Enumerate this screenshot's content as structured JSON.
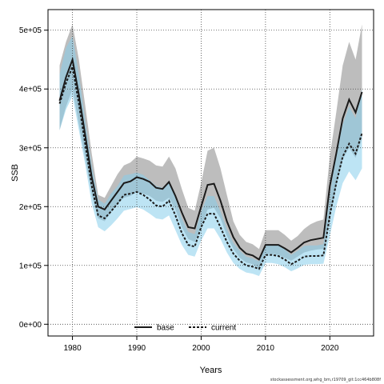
{
  "chart_data": {
    "type": "line",
    "title": "",
    "xlabel": "Years",
    "ylabel": "SSB",
    "xlim": [
      1976.2,
      2026.8
    ],
    "ylim": [
      -20000,
      535000
    ],
    "x_ticks": [
      1980,
      1990,
      2000,
      2010,
      2020
    ],
    "y_ticks": [
      0,
      100000,
      200000,
      300000,
      400000,
      500000
    ],
    "y_tick_labels": [
      "0e+00",
      "1e+05",
      "2e+05",
      "3e+05",
      "4e+05",
      "5e+05"
    ],
    "grid": true,
    "legend_position": "bottom-center",
    "x": [
      1978,
      1979,
      1980,
      1981,
      1982,
      1983,
      1984,
      1985,
      1986,
      1987,
      1988,
      1989,
      1990,
      1991,
      1992,
      1993,
      1994,
      1995,
      1996,
      1997,
      1998,
      1999,
      2000,
      2001,
      2002,
      2003,
      2004,
      2005,
      2006,
      2007,
      2008,
      2009,
      2010,
      2011,
      2012,
      2013,
      2014,
      2015,
      2016,
      2017,
      2018,
      2019,
      2020,
      2021,
      2022,
      2023,
      2024,
      2025
    ],
    "series": [
      {
        "name": "base",
        "line_style": "solid",
        "color": "#1a1a1a",
        "band_color": "#999999",
        "values": [
          380000,
          420000,
          450000,
          390000,
          320000,
          250000,
          200000,
          195000,
          210000,
          225000,
          240000,
          243000,
          250000,
          247000,
          242000,
          232000,
          230000,
          242000,
          218000,
          190000,
          165000,
          163000,
          200000,
          237000,
          239000,
          210000,
          175000,
          148000,
          130000,
          120000,
          117000,
          110000,
          135000,
          135000,
          135000,
          129000,
          122000,
          130000,
          139000,
          143000,
          145000,
          147000,
          235000,
          290000,
          350000,
          382000,
          360000,
          395000
        ],
        "lower": [
          330000,
          370000,
          400000,
          340000,
          280000,
          220000,
          180000,
          175000,
          190000,
          205000,
          215000,
          218000,
          225000,
          222000,
          218000,
          210000,
          208000,
          215000,
          195000,
          165000,
          145000,
          140000,
          165000,
          195000,
          198000,
          180000,
          150000,
          128000,
          113000,
          105000,
          102000,
          95000,
          120000,
          120000,
          118000,
          113000,
          108000,
          115000,
          122000,
          125000,
          127000,
          128000,
          180000,
          235000,
          280000,
          300000,
          283000,
          315000
        ],
        "upper": [
          440000,
          480000,
          510000,
          450000,
          370000,
          290000,
          220000,
          215000,
          235000,
          255000,
          270000,
          275000,
          285000,
          282000,
          278000,
          270000,
          268000,
          285000,
          265000,
          230000,
          198000,
          193000,
          240000,
          295000,
          300000,
          265000,
          220000,
          175000,
          152000,
          140000,
          136000,
          128000,
          160000,
          160000,
          160000,
          152000,
          142000,
          150000,
          162000,
          170000,
          175000,
          178000,
          285000,
          360000,
          440000,
          480000,
          450000,
          510000
        ]
      },
      {
        "name": "current",
        "line_style": "dashed",
        "color": "#1a1a1a",
        "band_color": "#87CEEB",
        "values": [
          375000,
          410000,
          438000,
          375000,
          305000,
          235000,
          185000,
          180000,
          192000,
          205000,
          220000,
          222000,
          225000,
          220000,
          212000,
          202000,
          200000,
          210000,
          185000,
          155000,
          135000,
          132000,
          165000,
          188000,
          188000,
          165000,
          140000,
          120000,
          108000,
          100000,
          98000,
          94000,
          118000,
          118000,
          116000,
          110000,
          102000,
          108000,
          115000,
          116000,
          116000,
          117000,
          185000,
          240000,
          285000,
          307000,
          290000,
          325000
        ],
        "lower": [
          330000,
          365000,
          388000,
          330000,
          270000,
          205000,
          165000,
          158000,
          168000,
          180000,
          193000,
          196000,
          199000,
          195000,
          188000,
          180000,
          178000,
          185000,
          160000,
          135000,
          118000,
          115000,
          142000,
          163000,
          163000,
          145000,
          122000,
          104000,
          94000,
          88000,
          86000,
          82000,
          104000,
          104000,
          102000,
          97000,
          90000,
          95000,
          101000,
          102000,
          102000,
          103000,
          150000,
          200000,
          240000,
          260000,
          245000,
          265000
        ],
        "upper": [
          425000,
          470000,
          490000,
          425000,
          345000,
          270000,
          212000,
          205000,
          222000,
          235000,
          253000,
          255000,
          258000,
          254000,
          245000,
          235000,
          232000,
          242000,
          215000,
          180000,
          157000,
          153000,
          192000,
          218000,
          218000,
          192000,
          162000,
          138000,
          125000,
          115000,
          112000,
          107000,
          136000,
          136000,
          134000,
          127000,
          118000,
          125000,
          133000,
          134000,
          134000,
          136000,
          220000,
          290000,
          340000,
          370000,
          350000,
          400000
        ]
      }
    ]
  },
  "footer": {
    "caption": "stockassessment.org,whg_bm,r19709_git:1cc464b808f"
  }
}
